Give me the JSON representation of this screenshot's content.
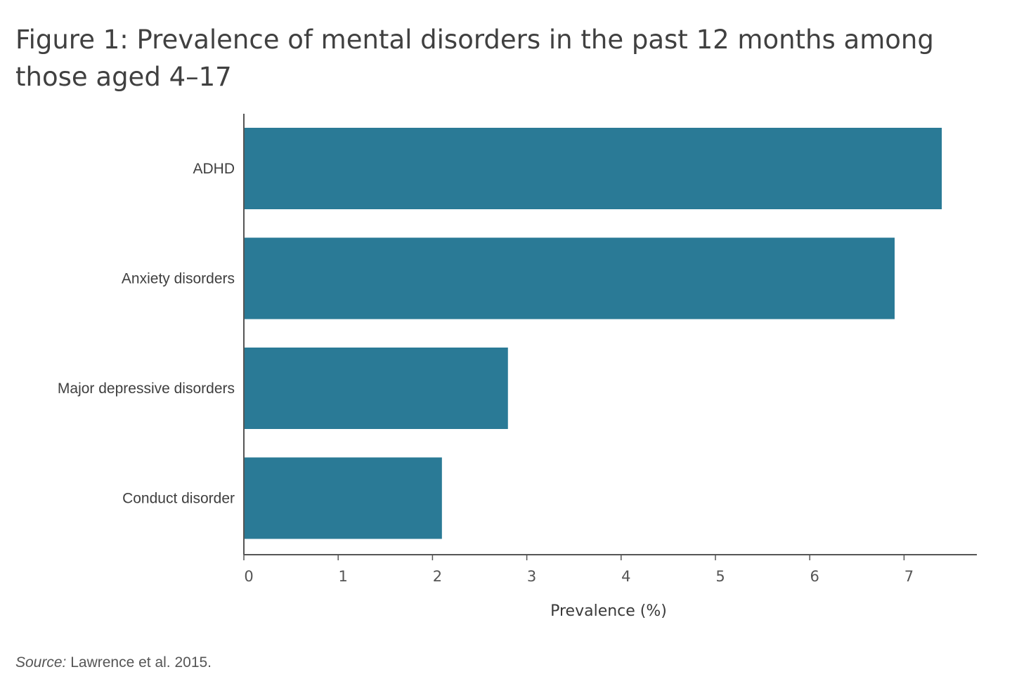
{
  "figure": {
    "title": "Figure 1: Prevalence of mental disorders in the past 12 months among those aged 4–17",
    "source_label": "Source:",
    "source_text": " Lawrence et al. 2015."
  },
  "chart_data": {
    "type": "bar",
    "orientation": "horizontal",
    "title": "Figure 1: Prevalence of mental disorders in the past 12 months among those aged 4–17",
    "categories": [
      "ADHD",
      "Anxiety disorders",
      "Major depressive disorders",
      "Conduct disorder"
    ],
    "values": [
      7.4,
      6.9,
      2.8,
      2.1
    ],
    "xlabel": "Prevalence (%)",
    "ylabel": "",
    "xlim": [
      0,
      7.8
    ],
    "xticks": [
      0,
      1,
      2,
      3,
      4,
      5,
      6,
      7
    ],
    "grid": false,
    "legend": "none",
    "bar_color": "#2a7a96",
    "axis_color": "#555555"
  }
}
